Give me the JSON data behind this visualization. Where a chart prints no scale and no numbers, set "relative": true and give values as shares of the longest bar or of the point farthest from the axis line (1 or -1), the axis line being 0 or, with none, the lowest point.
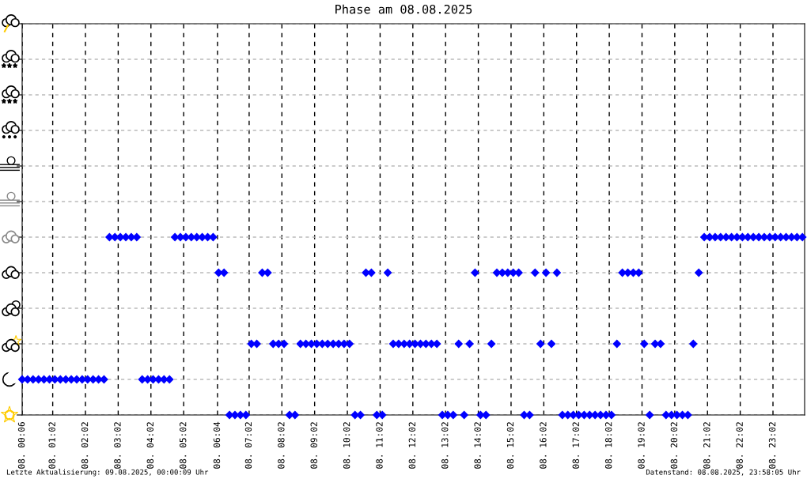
{
  "chart_data": {
    "type": "scatter",
    "title": "Phase am 08.08.2025",
    "annotations": [
      "Letzte Aktualisierung: 09.08.2025, 00:00:09 Uhr",
      "Datenstand: 08.08.2025, 23:58:05 Uhr"
    ],
    "x": [
      "2025-08-08T00:06",
      "2025-08-08T00:16",
      "2025-08-08T00:26",
      "2025-08-08T00:36",
      "2025-08-08T00:46",
      "2025-08-08T00:56",
      "2025-08-08T01:06",
      "2025-08-08T01:16",
      "2025-08-08T01:26",
      "2025-08-08T01:36",
      "2025-08-08T01:46",
      "2025-08-08T01:56",
      "2025-08-08T02:06",
      "2025-08-08T02:16",
      "2025-08-08T02:26",
      "2025-08-08T02:36",
      "2025-08-08T02:46",
      "2025-08-08T02:56",
      "2025-08-08T03:06",
      "2025-08-08T03:16",
      "2025-08-08T03:26",
      "2025-08-08T03:36",
      "2025-08-08T03:46",
      "2025-08-08T03:56",
      "2025-08-08T04:06",
      "2025-08-08T04:16",
      "2025-08-08T04:26",
      "2025-08-08T04:36",
      "2025-08-08T04:46",
      "2025-08-08T04:56",
      "2025-08-08T05:06",
      "2025-08-08T05:16",
      "2025-08-08T05:26",
      "2025-08-08T05:36",
      "2025-08-08T05:46",
      "2025-08-08T05:56",
      "2025-08-08T06:06",
      "2025-08-08T06:16",
      "2025-08-08T06:26",
      "2025-08-08T06:36",
      "2025-08-08T06:46",
      "2025-08-08T06:56",
      "2025-08-08T07:06",
      "2025-08-08T07:16",
      "2025-08-08T07:26",
      "2025-08-08T07:36",
      "2025-08-08T07:46",
      "2025-08-08T07:56",
      "2025-08-08T08:06",
      "2025-08-08T08:16",
      "2025-08-08T08:26",
      "2025-08-08T08:36",
      "2025-08-08T08:46",
      "2025-08-08T08:56",
      "2025-08-08T09:06",
      "2025-08-08T09:16",
      "2025-08-08T09:26",
      "2025-08-08T09:36",
      "2025-08-08T09:46",
      "2025-08-08T09:56",
      "2025-08-08T10:06",
      "2025-08-08T10:16",
      "2025-08-08T10:26",
      "2025-08-08T10:36",
      "2025-08-08T10:46",
      "2025-08-08T10:56",
      "2025-08-08T11:06",
      "2025-08-08T11:16",
      "2025-08-08T11:26",
      "2025-08-08T11:36",
      "2025-08-08T11:46",
      "2025-08-08T11:56",
      "2025-08-08T12:06",
      "2025-08-08T12:16",
      "2025-08-08T12:26",
      "2025-08-08T12:36",
      "2025-08-08T12:46",
      "2025-08-08T12:56",
      "2025-08-08T13:06",
      "2025-08-08T13:16",
      "2025-08-08T13:26",
      "2025-08-08T13:36",
      "2025-08-08T13:46",
      "2025-08-08T13:56",
      "2025-08-08T14:06",
      "2025-08-08T14:16",
      "2025-08-08T14:26",
      "2025-08-08T14:36",
      "2025-08-08T14:46",
      "2025-08-08T14:56",
      "2025-08-08T15:06",
      "2025-08-08T15:16",
      "2025-08-08T15:26",
      "2025-08-08T15:36",
      "2025-08-08T15:46",
      "2025-08-08T15:56",
      "2025-08-08T16:06",
      "2025-08-08T16:16",
      "2025-08-08T16:26",
      "2025-08-08T16:36",
      "2025-08-08T16:46",
      "2025-08-08T16:56",
      "2025-08-08T17:06",
      "2025-08-08T17:16",
      "2025-08-08T17:26",
      "2025-08-08T17:36",
      "2025-08-08T17:46",
      "2025-08-08T17:56",
      "2025-08-08T18:06",
      "2025-08-08T18:16",
      "2025-08-08T18:26",
      "2025-08-08T18:36",
      "2025-08-08T18:46",
      "2025-08-08T18:56",
      "2025-08-08T19:06",
      "2025-08-08T19:16",
      "2025-08-08T19:26",
      "2025-08-08T19:36",
      "2025-08-08T19:46",
      "2025-08-08T19:56",
      "2025-08-08T20:06",
      "2025-08-08T20:16",
      "2025-08-08T20:26",
      "2025-08-08T20:36",
      "2025-08-08T20:46",
      "2025-08-08T20:56",
      "2025-08-08T21:06",
      "2025-08-08T21:16",
      "2025-08-08T21:26",
      "2025-08-08T21:36",
      "2025-08-08T21:46",
      "2025-08-08T21:56",
      "2025-08-08T22:06",
      "2025-08-08T22:16",
      "2025-08-08T22:26",
      "2025-08-08T22:36",
      "2025-08-08T22:46",
      "2025-08-08T22:56",
      "2025-08-08T23:06",
      "2025-08-08T23:16",
      "2025-08-08T23:26",
      "2025-08-08T23:36",
      "2025-08-08T23:46",
      "2025-08-08T23:56"
    ],
    "series": [
      {
        "color": "#0000ff",
        "values": [
          0.2,
          0.2,
          0.2,
          0.2,
          0.2,
          0.2,
          0.2,
          0.2,
          0.2,
          0.2,
          0.2,
          0.2,
          0.2,
          0.2,
          0.2,
          0.2,
          1,
          1,
          1,
          1,
          1,
          1,
          0.2,
          0.2,
          0.2,
          0.2,
          0.2,
          0.2,
          1,
          1,
          1,
          1,
          1,
          1,
          1,
          1,
          0.8,
          0.8,
          0,
          0,
          0,
          0,
          0.4,
          0.4,
          0.8,
          0.8,
          0.4,
          0.4,
          0.4,
          0,
          0,
          0.4,
          0.4,
          0.4,
          0.4,
          0.4,
          0.4,
          0.4,
          0.4,
          0.4,
          0.4,
          0,
          0,
          0.8,
          0.8,
          0,
          0,
          0.8,
          0.4,
          0.4,
          0.4,
          0.4,
          0.4,
          0.4,
          0.4,
          0.4,
          0.4,
          0,
          0,
          0,
          0.4,
          0,
          0.4,
          0.8,
          0,
          0,
          0.4,
          0.8,
          0.8,
          0.8,
          0.8,
          0.8,
          0,
          0,
          0.8,
          0.4,
          0.8,
          0.4,
          0.8,
          0,
          0,
          0,
          0,
          0,
          0,
          0,
          0,
          0,
          0,
          0.4,
          0.8,
          0.8,
          0.8,
          0.8,
          0.4,
          0,
          0.4,
          0.4,
          0,
          0,
          0,
          0,
          0,
          0.4,
          0.8,
          1,
          1,
          1,
          1,
          1,
          1,
          1,
          1,
          1,
          1,
          1,
          1,
          1,
          1,
          1,
          1,
          1,
          1,
          1
        ]
      }
    ],
    "relative": true,
    "marker": "diamond",
    "xlim": [
      "2025-08-08T00:06",
      "2025-08-09T00:00"
    ],
    "xticks": [
      {
        "value": "2025-08-08T00:06",
        "label": "08. 00:06"
      },
      {
        "value": "2025-08-08T01:02",
        "label": "08. 01:02"
      },
      {
        "value": "2025-08-08T02:02",
        "label": "08. 02:02"
      },
      {
        "value": "2025-08-08T03:02",
        "label": "08. 03:02"
      },
      {
        "value": "2025-08-08T04:02",
        "label": "08. 04:02"
      },
      {
        "value": "2025-08-08T05:02",
        "label": "08. 05:02"
      },
      {
        "value": "2025-08-08T06:04",
        "label": "08. 06:04"
      },
      {
        "value": "2025-08-08T07:02",
        "label": "08. 07:02"
      },
      {
        "value": "2025-08-08T08:02",
        "label": "08. 08:02"
      },
      {
        "value": "2025-08-08T09:02",
        "label": "08. 09:02"
      },
      {
        "value": "2025-08-08T10:02",
        "label": "08. 10:02"
      },
      {
        "value": "2025-08-08T11:02",
        "label": "08. 11:02"
      },
      {
        "value": "2025-08-08T12:02",
        "label": "08. 12:02"
      },
      {
        "value": "2025-08-08T13:02",
        "label": "08. 13:02"
      },
      {
        "value": "2025-08-08T14:02",
        "label": "08. 14:02"
      },
      {
        "value": "2025-08-08T15:02",
        "label": "08. 15:02"
      },
      {
        "value": "2025-08-08T16:02",
        "label": "08. 16:02"
      },
      {
        "value": "2025-08-08T17:02",
        "label": "08. 17:02"
      },
      {
        "value": "2025-08-08T18:02",
        "label": "08. 18:02"
      },
      {
        "value": "2025-08-08T19:02",
        "label": "08. 19:02"
      },
      {
        "value": "2025-08-08T20:02",
        "label": "08. 20:02"
      },
      {
        "value": "2025-08-08T21:02",
        "label": "08. 21:02"
      },
      {
        "value": "2025-08-08T22:02",
        "label": "08. 22:02"
      },
      {
        "value": "2025-08-08T23:02",
        "label": "08. 23:02"
      }
    ],
    "grid": true,
    "tick_labels": "x"
  }
}
